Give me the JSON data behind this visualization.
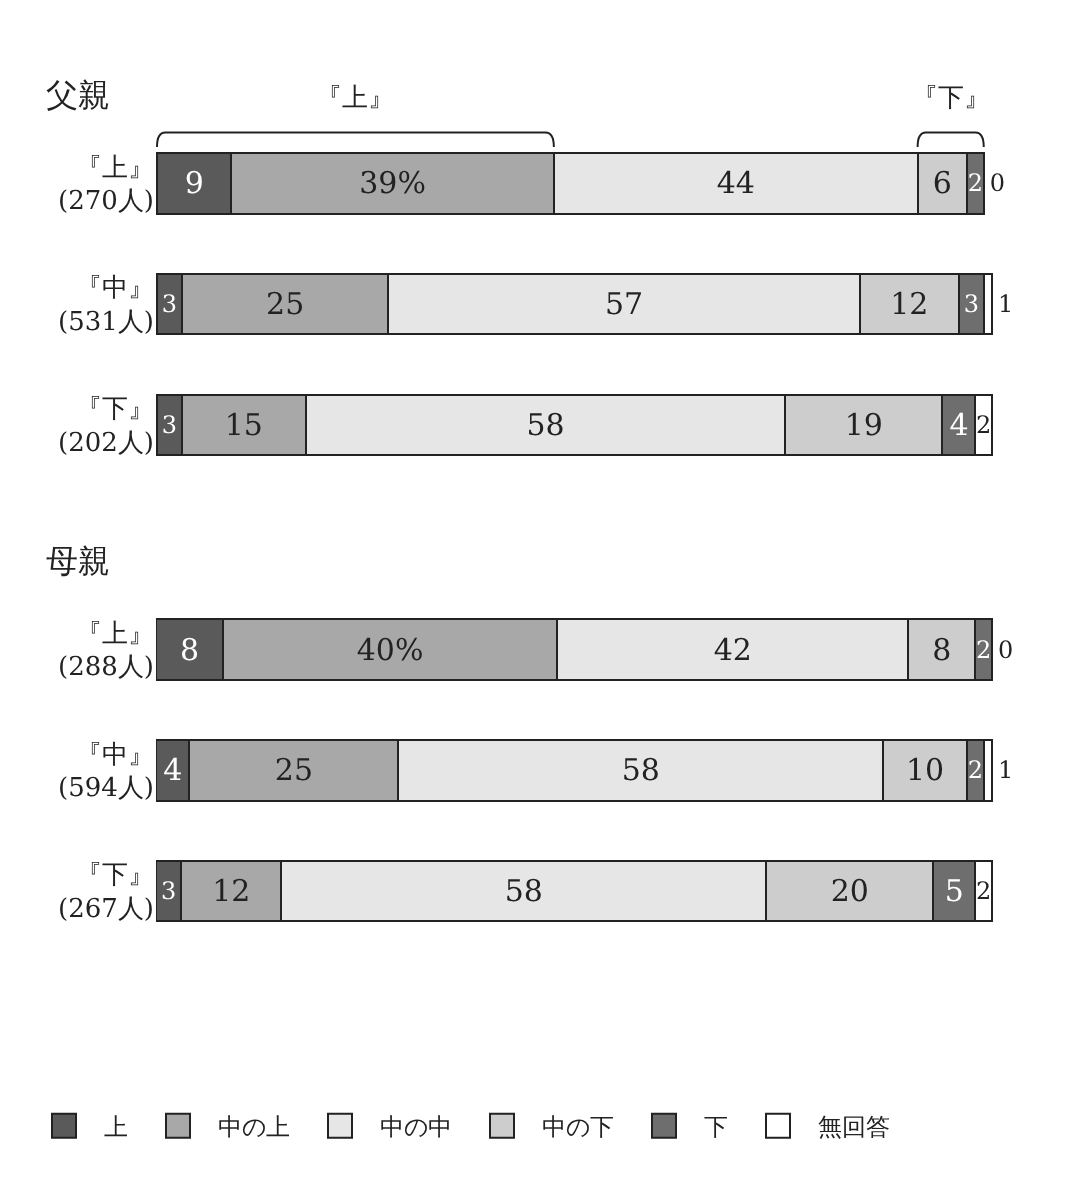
{
  "chart_data": [
    {
      "type": "bar",
      "title": "父親",
      "orientation": "horizontal",
      "stacked": true,
      "tick_labels": "y",
      "legend": "bottom",
      "categories": [
        "『上』\n(270人)",
        "『中』\n(531人)",
        "『下』\n(202人)"
      ],
      "annotations": [
        "『上』",
        "『下』"
      ],
      "series": [
        {
          "name": "上",
          "color": "#5a5a5a",
          "values": [
            9,
            3,
            3
          ],
          "value_labels": [
            "9",
            "3",
            "3"
          ]
        },
        {
          "name": "中の上",
          "color": "#a8a8a8",
          "values": [
            39,
            25,
            15
          ],
          "value_labels": [
            "39%",
            "25",
            "15"
          ]
        },
        {
          "name": "中の中",
          "color": "#e6e6e6",
          "values": [
            44,
            57,
            58
          ],
          "value_labels": [
            "44",
            "57",
            "58"
          ]
        },
        {
          "name": "中の下",
          "color": "#cdcdcd",
          "values": [
            6,
            12,
            19
          ],
          "value_labels": [
            "6",
            "12",
            "19"
          ]
        },
        {
          "name": "下",
          "color": "#6e6e6e",
          "values": [
            2,
            3,
            4
          ],
          "value_labels": [
            "2",
            "3",
            "4"
          ]
        },
        {
          "name": "無回答",
          "color": "#ffffff",
          "values": [
            0,
            1,
            2
          ],
          "value_labels": [
            "0",
            "1",
            "2"
          ]
        }
      ]
    },
    {
      "type": "bar",
      "title": "母親",
      "orientation": "horizontal",
      "stacked": true,
      "tick_labels": "y",
      "categories": [
        "『上』\n(288人)",
        "『中』\n(594人)",
        "『下』\n(267人)"
      ],
      "series": [
        {
          "color": "#5a5a5a",
          "values": [
            8,
            4,
            3
          ],
          "value_labels": [
            "8",
            "4",
            "3"
          ]
        },
        {
          "color": "#a8a8a8",
          "values": [
            40,
            25,
            12
          ],
          "value_labels": [
            "40%",
            "25",
            "12"
          ]
        },
        {
          "color": "#e6e6e6",
          "values": [
            42,
            58,
            58
          ],
          "value_labels": [
            "42",
            "58",
            "58"
          ]
        },
        {
          "color": "#cdcdcd",
          "values": [
            8,
            10,
            20
          ],
          "value_labels": [
            "8",
            "10",
            "20"
          ]
        },
        {
          "color": "#6e6e6e",
          "values": [
            2,
            2,
            5
          ],
          "value_labels": [
            "2",
            "2",
            "5"
          ]
        },
        {
          "color": "#ffffff",
          "values": [
            0,
            1,
            2
          ],
          "value_labels": [
            "0",
            "1",
            "2"
          ]
        }
      ]
    }
  ]
}
